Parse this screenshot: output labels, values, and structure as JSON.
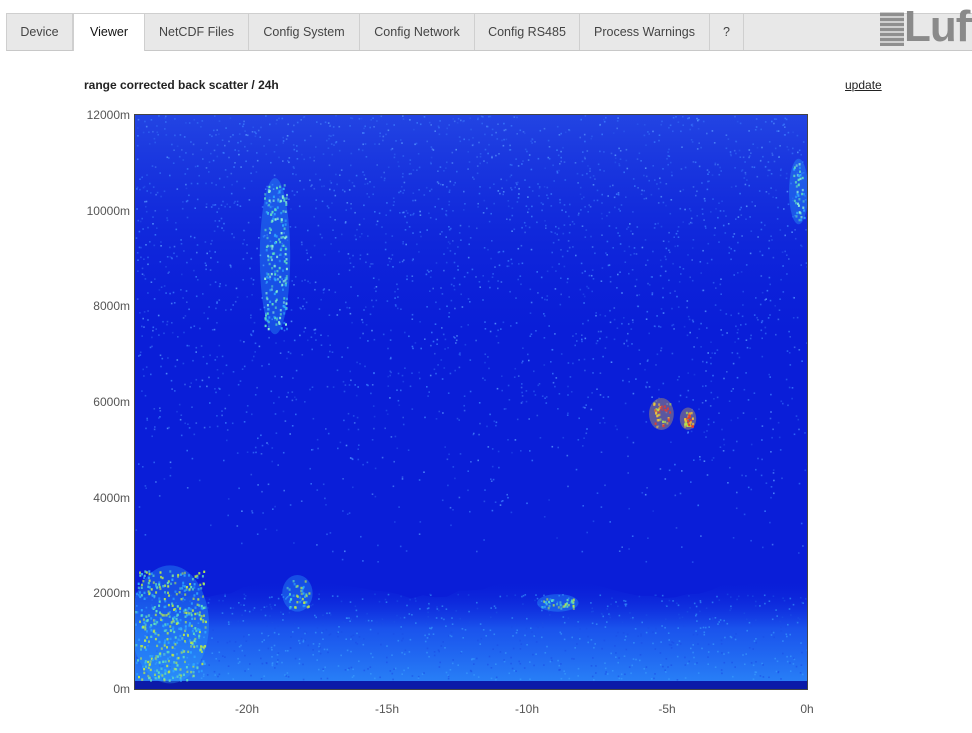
{
  "tabs": [
    {
      "label": "Device"
    },
    {
      "label": "Viewer",
      "active": true
    },
    {
      "label": "NetCDF Files"
    },
    {
      "label": "Config System"
    },
    {
      "label": "Config Network"
    },
    {
      "label": "Config RS485"
    },
    {
      "label": "Process Warnings"
    },
    {
      "label": "?"
    }
  ],
  "logo": {
    "text": "Lufft"
  },
  "viewer": {
    "title": "range corrected back scatter / 24h",
    "update_label": "update"
  },
  "chart_data": {
    "type": "heatmap",
    "title": "range corrected back scatter / 24h",
    "y_ticks": [
      "0m",
      "2000m",
      "4000m",
      "6000m",
      "8000m",
      "10000m",
      "12000m"
    ],
    "y_tick_values": [
      0,
      2000,
      4000,
      6000,
      8000,
      10000,
      12000
    ],
    "ylim": [
      0,
      12000
    ],
    "x_ticks": [
      "-20h",
      "-15h",
      "-10h",
      "-5h",
      "0h"
    ],
    "x_tick_values": [
      -20,
      -15,
      -10,
      -5,
      0
    ],
    "xlim": [
      -24,
      0
    ],
    "grid": false,
    "colors": {
      "background": "#0a1ed8",
      "noise": "#3a7cff",
      "boundary_layer": "#1f6ff0",
      "aerosol": "#2fa8ff",
      "cloud_high": "#5fe0c0",
      "cloud_low": "#b8e84a",
      "strong": "#e83a2a"
    },
    "features": [
      {
        "kind": "boundary_layer",
        "x_start": -24,
        "x_end": 0,
        "top_m": 2000
      },
      {
        "kind": "low_cloud",
        "x_start": -24,
        "x_end": -21.5,
        "y_min": 200,
        "y_max": 2500
      },
      {
        "kind": "low_cloud",
        "x_start": -18.6,
        "x_end": -17.8,
        "y_min": 1700,
        "y_max": 2300
      },
      {
        "kind": "low_cloud",
        "x_start": -9.5,
        "x_end": -8.3,
        "y_min": 1700,
        "y_max": 1900
      },
      {
        "kind": "cirrus",
        "x_start": -19.4,
        "x_end": -18.6,
        "y_min": 7500,
        "y_max": 10600
      },
      {
        "kind": "strong_echo",
        "x_start": -5.5,
        "x_end": -4.9,
        "y_min": 5500,
        "y_max": 6000
      },
      {
        "kind": "strong_echo",
        "x_start": -4.4,
        "x_end": -4.1,
        "y_min": 5500,
        "y_max": 5800
      },
      {
        "kind": "cirrus",
        "x_start": -0.5,
        "x_end": -0.1,
        "y_min": 9800,
        "y_max": 11000
      }
    ]
  }
}
